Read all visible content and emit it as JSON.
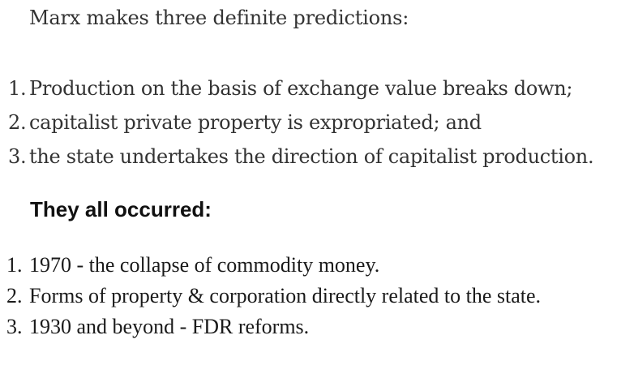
{
  "intro": "Marx makes three definite predictions:",
  "predictions": [
    {
      "num": "1.",
      "text": "Production on the basis of exchange value breaks down;"
    },
    {
      "num": "2.",
      "text": "capitalist private property is expropriated; and"
    },
    {
      "num": "3.",
      "text": "the state undertakes the direction of capitalist production."
    }
  ],
  "heading": "They all occurred:",
  "occurrences": [
    {
      "num": "1.",
      "text": "1970 - the collapse of commodity money."
    },
    {
      "num": "2.",
      "text": "Forms of property & corporation directly related to the state."
    },
    {
      "num": "3.",
      "text": "1930 and beyond - FDR reforms."
    }
  ]
}
